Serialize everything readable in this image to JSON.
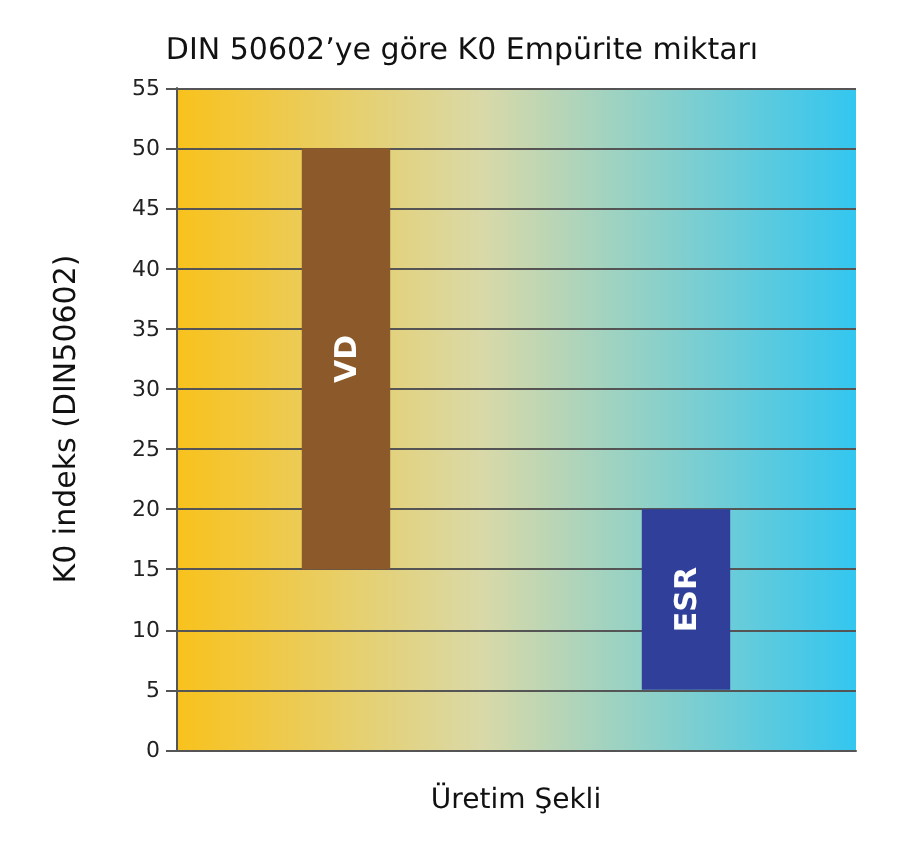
{
  "chart_data": {
    "type": "bar",
    "title": "DIN 50602’ye göre K0 Empürite miktarı",
    "xlabel": "Üretim Şekli",
    "ylabel": "K0 indeks (DIN50602)",
    "categories": [
      "VD",
      "ESR"
    ],
    "base": [
      15,
      5
    ],
    "values": [
      35,
      15
    ],
    "colors": [
      "#8c5a2a",
      "#2f3f9a"
    ],
    "ylim": [
      0,
      55
    ],
    "yticks": [
      0,
      5,
      10,
      15,
      20,
      25,
      30,
      35,
      40,
      45,
      50,
      55
    ],
    "grid": "y",
    "tick_labels": "y"
  }
}
